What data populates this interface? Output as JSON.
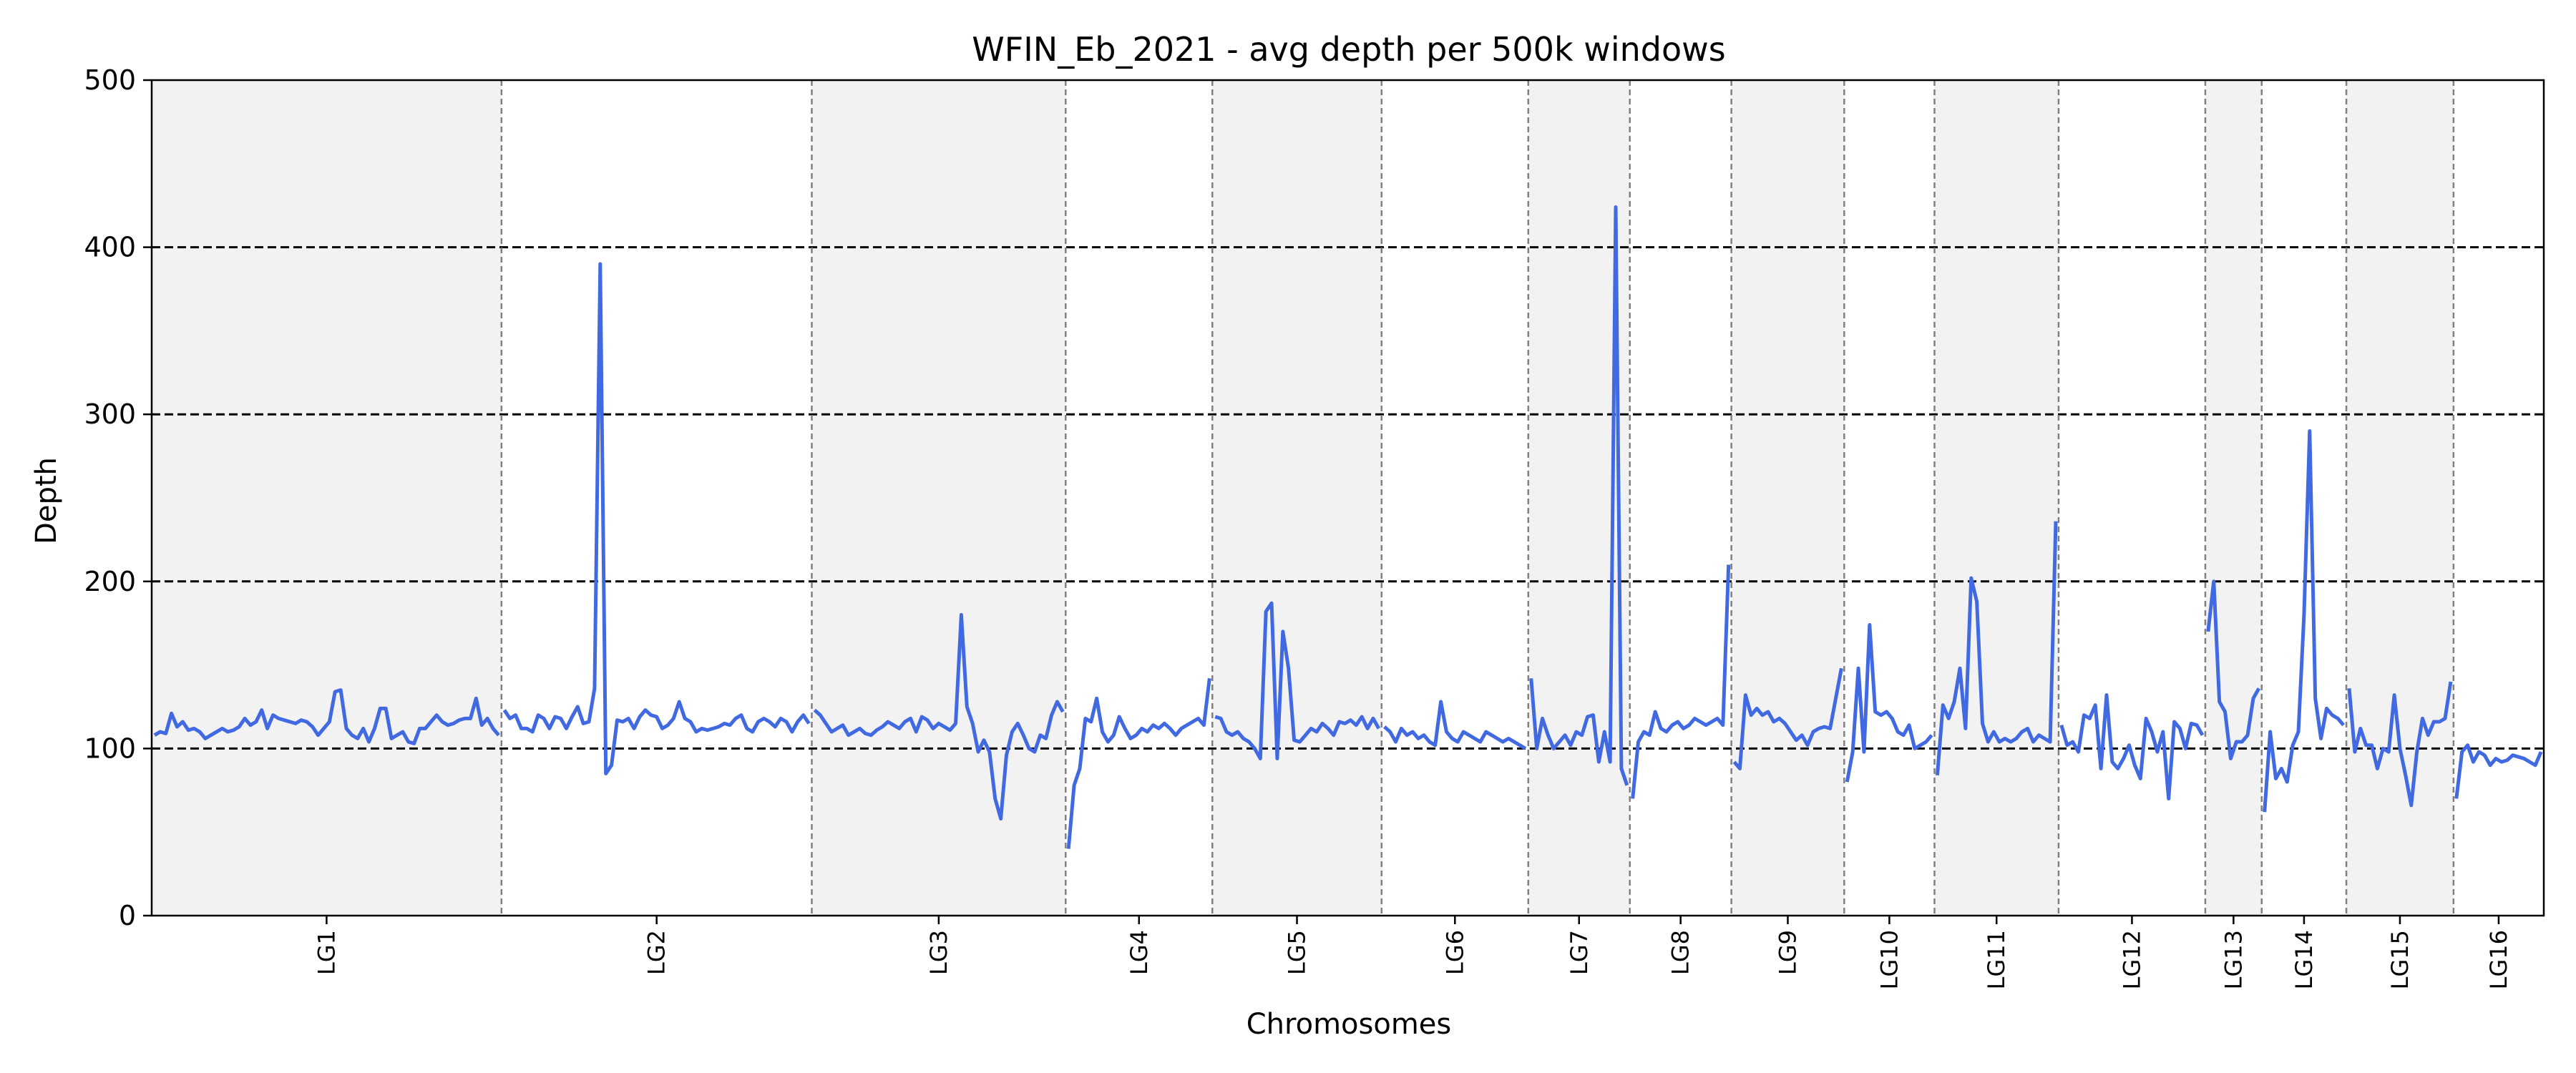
{
  "chart_data": {
    "type": "line",
    "title": "WFIN_Eb_2021 - avg depth per 500k windows",
    "xlabel": "Chromosomes",
    "ylabel": "Depth",
    "ylim": [
      0,
      500
    ],
    "yticks": [
      0,
      100,
      200,
      300,
      400,
      500
    ],
    "hlines": [
      100,
      200,
      300,
      400
    ],
    "shading": "alternating grey/white chromosome bands",
    "colors": {
      "line": "#4169e1",
      "band": "#f2f2f2",
      "hline": "#000000",
      "boundary": "#808080"
    },
    "chromosomes": [
      {
        "name": "LG1",
        "values": [
          108,
          110,
          109,
          121,
          113,
          116,
          111,
          112,
          110,
          106,
          108,
          110,
          112,
          110,
          111,
          113,
          118,
          114,
          116,
          123,
          112,
          120,
          118,
          117,
          116,
          115,
          117,
          116,
          113,
          108,
          112,
          116,
          134,
          135,
          112,
          108,
          106,
          112,
          104,
          112,
          124,
          124,
          106,
          108,
          110,
          104,
          103,
          112,
          112,
          116,
          120,
          116,
          114,
          115,
          117,
          118,
          118,
          130,
          114,
          118,
          112,
          108
        ]
      },
      {
        "name": "LG2",
        "values": [
          123,
          118,
          120,
          112,
          112,
          110,
          120,
          118,
          112,
          119,
          118,
          112,
          119,
          125,
          115,
          116,
          136,
          390,
          85,
          90,
          117,
          116,
          118,
          112,
          119,
          123,
          120,
          119,
          112,
          114,
          118,
          128,
          118,
          116,
          110,
          112,
          111,
          112,
          113,
          115,
          114,
          118,
          120,
          112,
          110,
          116,
          118,
          116,
          113,
          118,
          116,
          110,
          116,
          120,
          115
        ]
      },
      {
        "name": "LG3",
        "values": [
          123,
          120,
          115,
          110,
          112,
          114,
          108,
          110,
          112,
          109,
          108,
          111,
          113,
          116,
          114,
          112,
          116,
          118,
          110,
          119,
          117,
          112,
          115,
          113,
          111,
          115,
          180,
          125,
          115,
          98,
          105,
          98,
          70,
          58,
          96,
          110,
          115,
          108,
          100,
          98,
          108,
          106,
          120,
          128,
          122
        ]
      },
      {
        "name": "LG4",
        "values": [
          40,
          78,
          88,
          118,
          116,
          130,
          110,
          104,
          108,
          119,
          112,
          106,
          108,
          112,
          110,
          114,
          112,
          115,
          112,
          108,
          112,
          114,
          116,
          118,
          114,
          142
        ]
      },
      {
        "name": "LG5",
        "values": [
          119,
          118,
          110,
          108,
          110,
          106,
          104,
          100,
          94,
          182,
          187,
          94,
          170,
          148,
          105,
          104,
          108,
          112,
          110,
          115,
          112,
          108,
          116,
          115,
          117,
          114,
          119,
          112,
          118,
          112
        ]
      },
      {
        "name": "LG6",
        "values": [
          113,
          110,
          104,
          112,
          108,
          110,
          106,
          108,
          104,
          102,
          128,
          110,
          106,
          104,
          110,
          108,
          106,
          104,
          110,
          108,
          106,
          104,
          106,
          104,
          102,
          100
        ]
      },
      {
        "name": "LG7",
        "values": [
          142,
          100,
          118,
          108,
          100,
          104,
          108,
          102,
          110,
          108,
          119,
          120,
          92,
          110,
          92,
          424,
          88,
          78
        ]
      },
      {
        "name": "LG8",
        "values": [
          70,
          104,
          110,
          108,
          122,
          112,
          110,
          114,
          116,
          112,
          114,
          118,
          116,
          114,
          116,
          118,
          114,
          210
        ]
      },
      {
        "name": "LG9",
        "values": [
          92,
          88,
          132,
          120,
          124,
          120,
          122,
          116,
          118,
          115,
          110,
          105,
          108,
          102,
          110,
          112,
          113,
          112,
          130,
          148
        ]
      },
      {
        "name": "LG10",
        "values": [
          80,
          98,
          148,
          98,
          174,
          122,
          120,
          122,
          118,
          110,
          108,
          114,
          100,
          102,
          104,
          108
        ]
      },
      {
        "name": "LG11",
        "values": [
          84,
          126,
          118,
          128,
          148,
          112,
          202,
          188,
          115,
          104,
          110,
          104,
          106,
          104,
          106,
          110,
          112,
          104,
          108,
          106,
          104,
          236
        ]
      },
      {
        "name": "LG12",
        "values": [
          114,
          102,
          104,
          98,
          120,
          118,
          126,
          88,
          132,
          92,
          88,
          94,
          102,
          90,
          82,
          118,
          110,
          98,
          110,
          70,
          116,
          112,
          100,
          115,
          114,
          108
        ]
      },
      {
        "name": "LG13",
        "values": [
          170,
          200,
          128,
          122,
          94,
          104,
          104,
          108,
          130,
          136
        ]
      },
      {
        "name": "LG14",
        "values": [
          62,
          110,
          82,
          88,
          80,
          102,
          110,
          180,
          290,
          130,
          106,
          124,
          120,
          118,
          114
        ]
      },
      {
        "name": "LG15",
        "values": [
          136,
          98,
          112,
          102,
          102,
          88,
          100,
          98,
          132,
          100,
          84,
          66,
          98,
          118,
          108,
          116,
          116,
          118,
          140
        ]
      },
      {
        "name": "LG16",
        "values": [
          70,
          98,
          102,
          92,
          98,
          96,
          90,
          94,
          92,
          93,
          96,
          95,
          94,
          92,
          90,
          98
        ]
      }
    ]
  }
}
